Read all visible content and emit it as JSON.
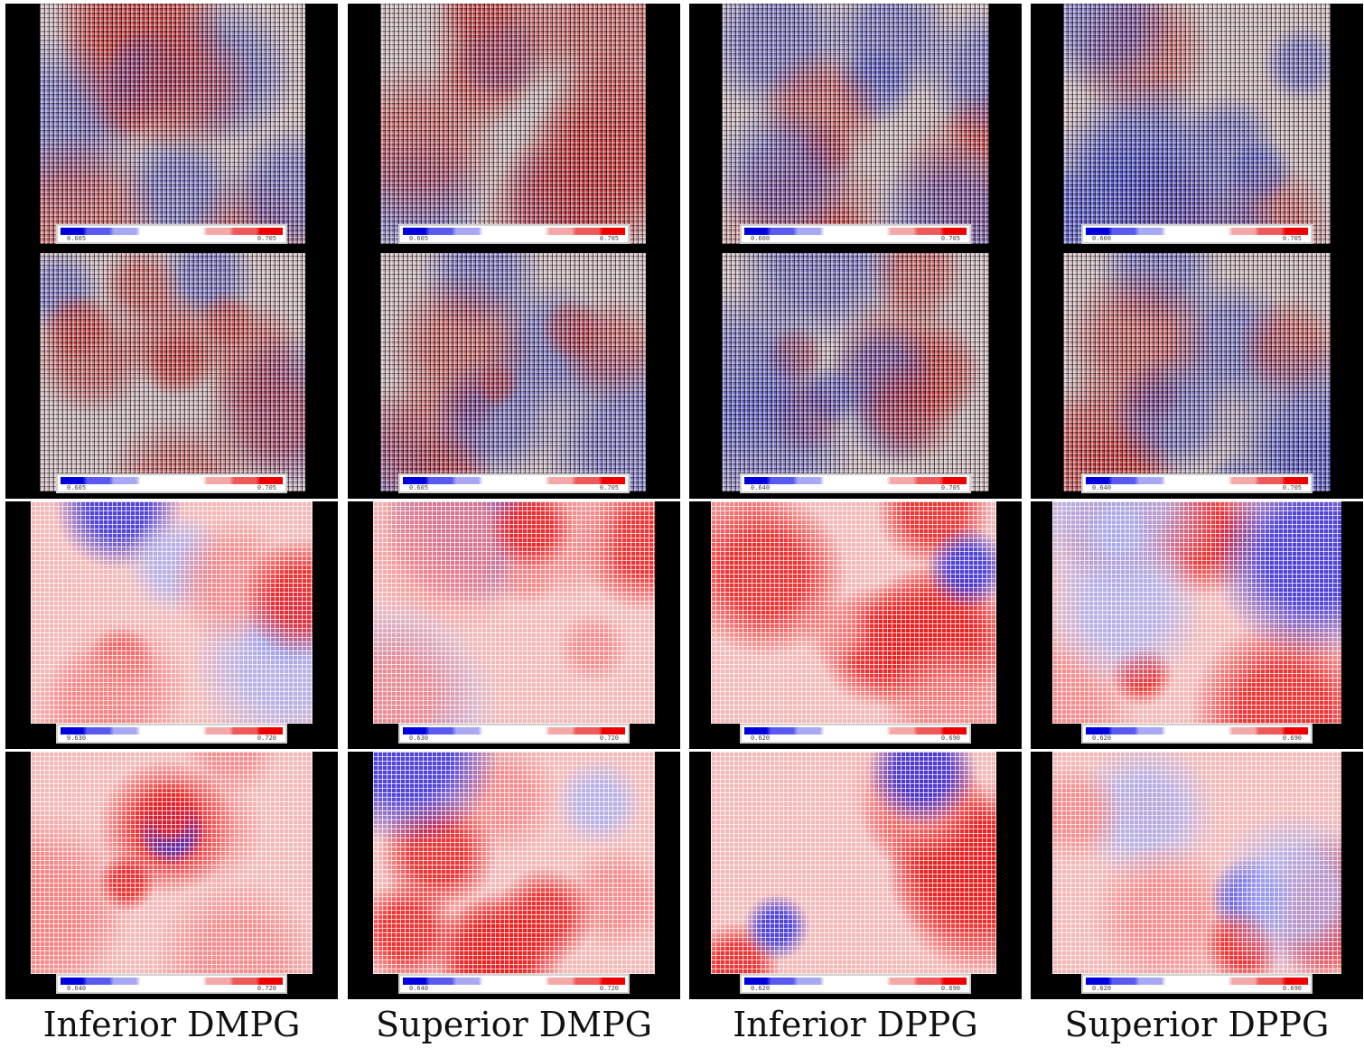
{
  "columns": [
    {
      "label": "Inferior DMPG",
      "colorbars": [
        {
          "lo": "0.605",
          "hi": "0.705"
        },
        {
          "lo": "0.605",
          "hi": "0.705"
        },
        {
          "lo": "0.630",
          "hi": "0.720"
        },
        {
          "lo": "0.640",
          "hi": "0.720"
        }
      ]
    },
    {
      "label": "Superior DMPG",
      "colorbars": [
        {
          "lo": "0.605",
          "hi": "0.705"
        },
        {
          "lo": "0.605",
          "hi": "0.705"
        },
        {
          "lo": "0.630",
          "hi": "0.720"
        },
        {
          "lo": "0.640",
          "hi": "0.720"
        }
      ]
    },
    {
      "label": "Inferior DPPG",
      "colorbars": [
        {
          "lo": "0.600",
          "hi": "0.705"
        },
        {
          "lo": "0.640",
          "hi": "0.705"
        },
        {
          "lo": "0.620",
          "hi": "0.690"
        },
        {
          "lo": "0.620",
          "hi": "0.690"
        }
      ]
    },
    {
      "label": "Superior DPPG",
      "colorbars": [
        {
          "lo": "0.600",
          "hi": "0.705"
        },
        {
          "lo": "0.640",
          "hi": "0.705"
        },
        {
          "lo": "0.620",
          "hi": "0.690"
        },
        {
          "lo": "0.620",
          "hi": "0.690"
        }
      ]
    }
  ],
  "colors": {
    "low": "#0000dd",
    "mid": "#ffffff",
    "high": "#ee0000",
    "background": "#000000"
  }
}
